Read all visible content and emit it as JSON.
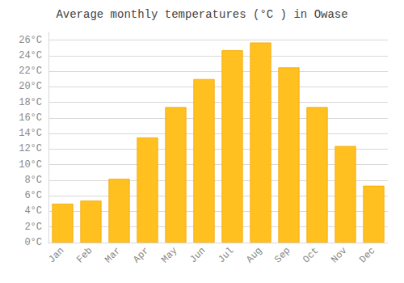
{
  "chart_data": {
    "type": "bar",
    "title": "Average monthly temperatures (°C ) in Owase",
    "categories": [
      "Jan",
      "Feb",
      "Mar",
      "Apr",
      "May",
      "Jun",
      "Jul",
      "Aug",
      "Sep",
      "Oct",
      "Nov",
      "Dec"
    ],
    "values": [
      5.0,
      5.4,
      8.2,
      13.5,
      17.4,
      21.0,
      24.7,
      25.7,
      22.5,
      17.4,
      12.4,
      7.3
    ],
    "color": "#FFC020",
    "ylim": [
      0,
      27
    ],
    "yticks": [
      {
        "value": 0,
        "label": "0°C"
      },
      {
        "value": 2,
        "label": "2°C"
      },
      {
        "value": 4,
        "label": "4°C"
      },
      {
        "value": 6,
        "label": "6°C"
      },
      {
        "value": 8,
        "label": "8°C"
      },
      {
        "value": 10,
        "label": "10°C"
      },
      {
        "value": 12,
        "label": "12°C"
      },
      {
        "value": 14,
        "label": "14°C"
      },
      {
        "value": 16,
        "label": "16°C"
      },
      {
        "value": 18,
        "label": "18°C"
      },
      {
        "value": 20,
        "label": "20°C"
      },
      {
        "value": 22,
        "label": "22°C"
      },
      {
        "value": 24,
        "label": "24°C"
      },
      {
        "value": 26,
        "label": "26°C"
      }
    ],
    "grid": true
  }
}
